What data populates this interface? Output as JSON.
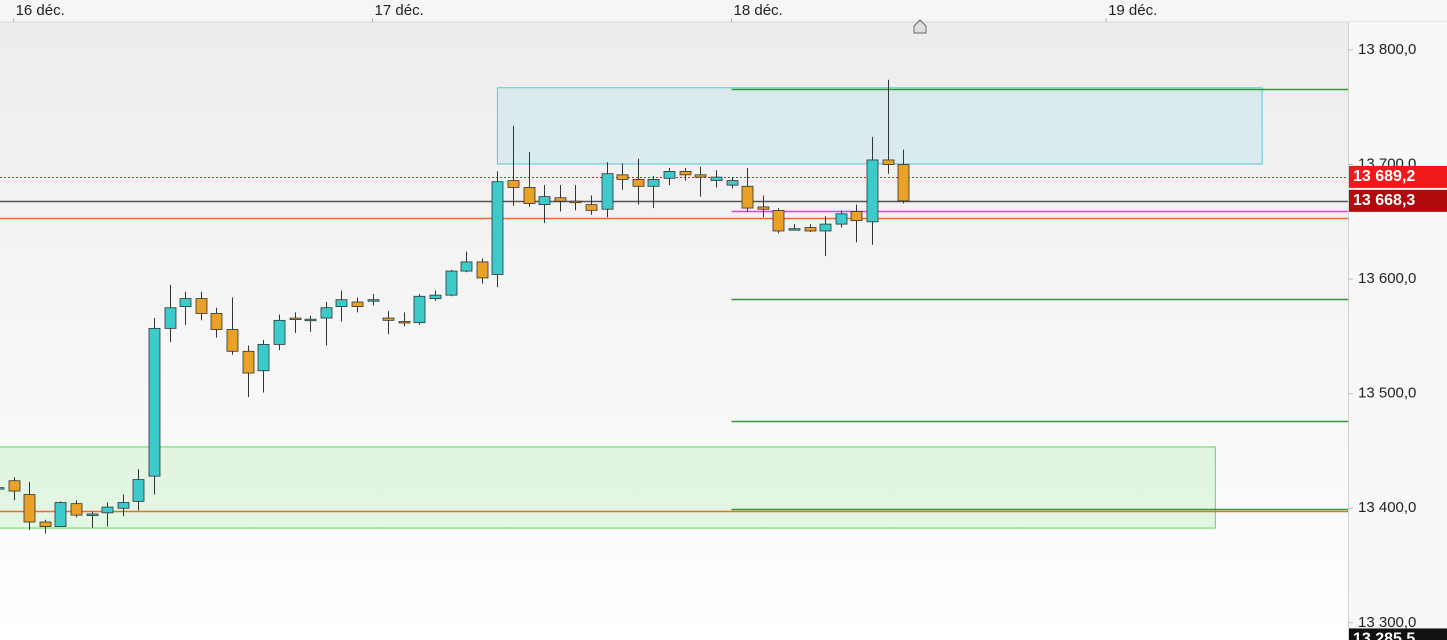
{
  "chart_data": {
    "type": "candlestick",
    "categories": [
      null,
      null,
      null,
      null,
      null,
      null,
      null,
      null,
      null,
      null,
      null,
      null,
      null,
      null,
      null,
      null,
      null,
      null,
      null,
      null,
      null,
      null,
      null,
      null,
      null,
      null,
      null,
      null,
      null,
      null,
      null,
      null,
      null,
      null,
      null,
      null,
      null,
      null,
      null,
      null,
      null,
      null,
      null,
      null,
      null,
      null,
      null,
      null,
      null,
      null,
      null,
      null,
      null,
      null,
      null,
      null,
      null,
      null,
      null
    ],
    "open": [
      13418,
      13424,
      13412,
      13388,
      13384,
      13404,
      13395,
      13396,
      13400,
      13406,
      13428,
      13557,
      13576,
      13583,
      13570,
      13556,
      13537,
      13520,
      13543,
      13566,
      13565,
      13566,
      13576,
      13580,
      13582,
      13566,
      13563,
      13562,
      13583,
      13586,
      13607,
      13615,
      13604,
      13686,
      13680,
      13665,
      13671,
      13668,
      13665,
      13661,
      13691,
      13687,
      13681,
      13688,
      13694,
      13691,
      13686,
      13682,
      13681,
      13663,
      13660,
      13644,
      13645,
      13642,
      13648,
      13659,
      13650,
      13704,
      13700
    ],
    "high": [
      13420,
      13427,
      13423,
      13390,
      13406,
      13407,
      13397,
      13405,
      13412,
      13434,
      13566,
      13595,
      13589,
      13589,
      13575,
      13584,
      13542,
      13547,
      13569,
      13571,
      13568,
      13580,
      13590,
      13584,
      13587,
      13572,
      13571,
      13587,
      13590,
      13608,
      13624,
      13618,
      13694,
      13734,
      13711,
      13682,
      13682,
      13682,
      13673,
      13702,
      13701,
      13705,
      13690,
      13697,
      13697,
      13698,
      13695,
      13689,
      13697,
      13673,
      13662,
      13648,
      13648,
      13655,
      13660,
      13665,
      13724,
      13774,
      13713
    ],
    "low": [
      13416,
      13407,
      13381,
      13378,
      13384,
      13392,
      13383,
      13384,
      13393,
      13398,
      13412,
      13545,
      13560,
      13564,
      13549,
      13534,
      13497,
      13501,
      13538,
      13553,
      13554,
      13542,
      13563,
      13571,
      13577,
      13552,
      13559,
      13560,
      13581,
      13585,
      13606,
      13596,
      13593,
      13664,
      13663,
      13649,
      13659,
      13660,
      13656,
      13654,
      13678,
      13665,
      13662,
      13682,
      13686,
      13672,
      13680,
      13679,
      13659,
      13654,
      13640,
      13643,
      13641,
      13620,
      13645,
      13632,
      13630,
      13692,
      13666
    ],
    "close": [
      13418,
      13415,
      13388,
      13384,
      13405,
      13394,
      13395,
      13401,
      13405,
      13425,
      13557,
      13575,
      13583,
      13570,
      13556,
      13537,
      13518,
      13543,
      13564,
      13565,
      13565,
      13575,
      13582,
      13576,
      13582,
      13564,
      13562,
      13585,
      13586,
      13607,
      13615,
      13601,
      13685,
      13680,
      13666,
      13672,
      13668,
      13667,
      13660,
      13692,
      13687,
      13681,
      13687,
      13694,
      13691,
      13689,
      13689,
      13686,
      13662,
      13661,
      13642,
      13644,
      13642,
      13648,
      13657,
      13651,
      13704,
      13700,
      13668.3
    ],
    "up_color": "#3ccaca",
    "down_color": "#e9a226",
    "xlim": [
      0.13,
      86.5
    ],
    "xticks": [
      {
        "value": 1,
        "label": "16 déc."
      },
      {
        "value": 24,
        "label": "17 déc."
      },
      {
        "value": 47,
        "label": "18 déc."
      },
      {
        "value": 71,
        "label": "19 déc."
      }
    ],
    "ylim": [
      13285,
      13843.6
    ],
    "yticks": [
      {
        "value": 13300,
        "label": "13 300,0"
      },
      {
        "value": 13400,
        "label": "13 400,0"
      },
      {
        "value": 13500,
        "label": "13 500,0"
      },
      {
        "value": 13600,
        "label": "13 600,0"
      },
      {
        "value": 13700,
        "label": "13 700,0"
      },
      {
        "value": 13800,
        "label": "13 800,0"
      }
    ],
    "zones": [
      {
        "start": 32,
        "end": 81,
        "top": 13767,
        "bottom": 13700.5,
        "color": "#5bc6de"
      },
      {
        "start": 0,
        "end": 78,
        "top": 13453.5,
        "bottom": 13382.7,
        "color": "#5fd85f"
      }
    ],
    "levels": [
      {
        "value": 13766,
        "start": 47,
        "color": "#2e9a3a",
        "style": "solid"
      },
      {
        "value": 13583,
        "start": 47,
        "color": "#2e9a3a",
        "style": "solid"
      },
      {
        "value": 13476,
        "start": 47,
        "color": "#2e9a3a",
        "style": "solid"
      },
      {
        "value": 13399,
        "start": 47,
        "color": "#2e9a3a",
        "style": "solid"
      },
      {
        "value": 13659.5,
        "start": 47,
        "color": "#e040e0",
        "style": "solid"
      },
      {
        "value": 13653,
        "start": 0.13,
        "color": "#f06a2a",
        "style": "solid"
      },
      {
        "value": 13398,
        "start": 0.13,
        "color": "#f06a2a",
        "style": "solid"
      },
      {
        "value": 13689.2,
        "start": 0.13,
        "color": "#e02020",
        "style": "dotted"
      },
      {
        "value": 13668.3,
        "start": 0.13,
        "color": "#555555",
        "style": "solid"
      }
    ],
    "price_labels": [
      {
        "value": 13689.2,
        "label": "13 689,2",
        "color": "#f01818"
      },
      {
        "value": 13668.3,
        "label": "13 668,3",
        "color": "#b00a0a"
      },
      {
        "value": 13285.5,
        "label": "13 285,5",
        "color": "#111111"
      }
    ]
  }
}
